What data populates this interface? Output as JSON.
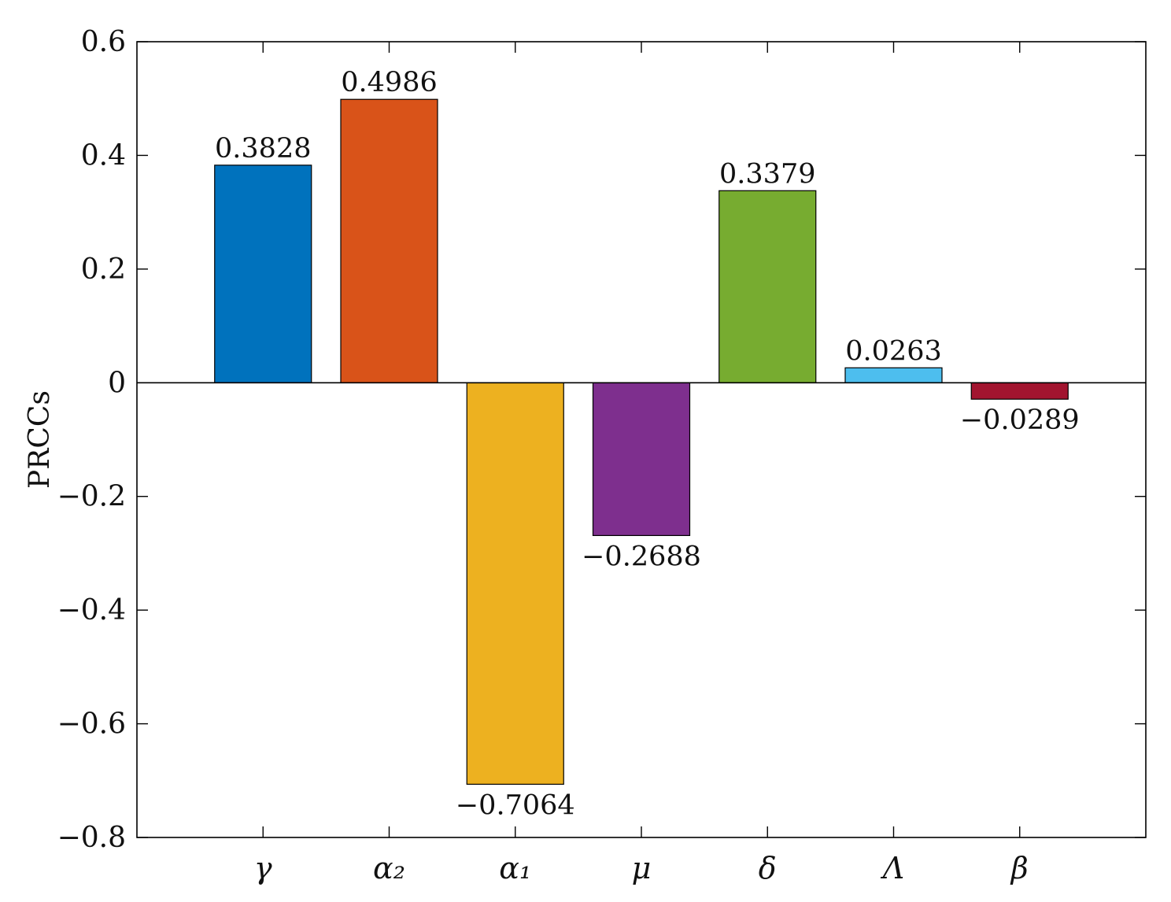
{
  "chart_data": {
    "type": "bar",
    "categories": [
      "γ",
      "α₂",
      "α₁",
      "μ",
      "δ",
      "Λ",
      "β"
    ],
    "values": [
      0.3828,
      0.4986,
      -0.7064,
      -0.2688,
      0.3379,
      0.0263,
      -0.0289
    ],
    "data_labels": [
      "0.3828",
      "0.4986",
      "−0.7064",
      "−0.2688",
      "0.3379",
      "0.0263",
      "−0.0289"
    ],
    "colors": [
      "#0072BD",
      "#D95319",
      "#EDB120",
      "#7E2F8E",
      "#77AC30",
      "#4DBEEE",
      "#A2142F"
    ],
    "title": "",
    "xlabel": "",
    "ylabel": "PRCCs",
    "ylim": [
      -0.8,
      0.6
    ],
    "yticks": [
      0.6,
      0.4,
      0.2,
      0,
      -0.2,
      -0.4,
      -0.6,
      -0.8
    ],
    "ytick_labels": [
      "0.6",
      "0.4",
      "0.2",
      "0",
      "−0.2",
      "−0.4",
      "−0.6",
      "−0.8"
    ],
    "xlim": [
      0,
      8
    ],
    "grid": false,
    "legend": "none"
  }
}
